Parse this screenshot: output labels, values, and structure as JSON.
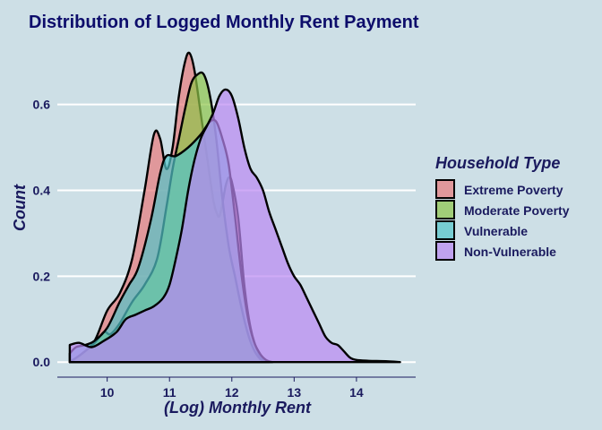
{
  "chart_data": {
    "type": "area",
    "title": "Distribution of Logged Monthly Rent Payment",
    "xlabel": "(Log) Monthly Rent",
    "ylabel": "Count",
    "xlim": [
      9.2,
      14.95
    ],
    "ylim": [
      -0.035,
      0.76
    ],
    "x_ticks": [
      10,
      11,
      12,
      13,
      14
    ],
    "y_ticks": [
      0.0,
      0.2,
      0.4,
      0.6
    ],
    "y_tick_labels": [
      "0.0",
      "0.2",
      "0.4",
      "0.6"
    ],
    "grid": "horizontal major lines",
    "legend_title": "Household Type",
    "legend_position": "right",
    "series": [
      {
        "name": "Extreme Poverty",
        "color": "#e8797a",
        "points": [
          [
            9.4,
            0.0
          ],
          [
            9.6,
            0.02
          ],
          [
            9.8,
            0.05
          ],
          [
            10.0,
            0.12
          ],
          [
            10.2,
            0.16
          ],
          [
            10.4,
            0.24
          ],
          [
            10.6,
            0.4
          ],
          [
            10.75,
            0.53
          ],
          [
            10.85,
            0.52
          ],
          [
            10.95,
            0.45
          ],
          [
            11.05,
            0.5
          ],
          [
            11.15,
            0.62
          ],
          [
            11.25,
            0.7
          ],
          [
            11.32,
            0.72
          ],
          [
            11.4,
            0.68
          ],
          [
            11.5,
            0.58
          ],
          [
            11.6,
            0.48
          ],
          [
            11.7,
            0.38
          ],
          [
            11.75,
            0.35
          ],
          [
            11.8,
            0.34
          ],
          [
            11.85,
            0.37
          ],
          [
            11.9,
            0.41
          ],
          [
            11.95,
            0.43
          ],
          [
            12.0,
            0.42
          ],
          [
            12.1,
            0.34
          ],
          [
            12.2,
            0.18
          ],
          [
            12.3,
            0.08
          ],
          [
            12.4,
            0.03
          ],
          [
            12.5,
            0.005
          ],
          [
            12.6,
            0.0
          ]
        ]
      },
      {
        "name": "Moderate Poverty",
        "color": "#8fc549",
        "points": [
          [
            9.4,
            0.0
          ],
          [
            9.6,
            0.02
          ],
          [
            9.8,
            0.045
          ],
          [
            9.95,
            0.07
          ],
          [
            10.05,
            0.065
          ],
          [
            10.2,
            0.09
          ],
          [
            10.4,
            0.14
          ],
          [
            10.6,
            0.18
          ],
          [
            10.8,
            0.24
          ],
          [
            10.95,
            0.36
          ],
          [
            11.05,
            0.45
          ],
          [
            11.15,
            0.52
          ],
          [
            11.25,
            0.59
          ],
          [
            11.35,
            0.65
          ],
          [
            11.45,
            0.67
          ],
          [
            11.55,
            0.67
          ],
          [
            11.65,
            0.62
          ],
          [
            11.75,
            0.52
          ],
          [
            11.85,
            0.38
          ],
          [
            11.95,
            0.27
          ],
          [
            12.05,
            0.2
          ],
          [
            12.15,
            0.13
          ],
          [
            12.25,
            0.07
          ],
          [
            12.35,
            0.03
          ],
          [
            12.45,
            0.008
          ],
          [
            12.55,
            0.0
          ]
        ]
      },
      {
        "name": "Vulnerable",
        "color": "#52c4c9",
        "points": [
          [
            9.4,
            0.02
          ],
          [
            9.5,
            0.035
          ],
          [
            9.65,
            0.04
          ],
          [
            9.8,
            0.05
          ],
          [
            10.0,
            0.08
          ],
          [
            10.2,
            0.14
          ],
          [
            10.35,
            0.18
          ],
          [
            10.5,
            0.22
          ],
          [
            10.7,
            0.33
          ],
          [
            10.85,
            0.44
          ],
          [
            10.95,
            0.48
          ],
          [
            11.1,
            0.48
          ],
          [
            11.3,
            0.5
          ],
          [
            11.5,
            0.53
          ],
          [
            11.65,
            0.56
          ],
          [
            11.75,
            0.56
          ],
          [
            11.85,
            0.52
          ],
          [
            11.95,
            0.46
          ],
          [
            12.05,
            0.34
          ],
          [
            12.15,
            0.21
          ],
          [
            12.25,
            0.11
          ],
          [
            12.35,
            0.05
          ],
          [
            12.45,
            0.02
          ],
          [
            12.55,
            0.005
          ],
          [
            12.65,
            0.0
          ]
        ]
      },
      {
        "name": "Non-Vulnerable",
        "color": "#bb88f2",
        "points": [
          [
            9.4,
            0.04
          ],
          [
            9.55,
            0.045
          ],
          [
            9.75,
            0.035
          ],
          [
            9.95,
            0.05
          ],
          [
            10.15,
            0.07
          ],
          [
            10.3,
            0.1
          ],
          [
            10.45,
            0.11
          ],
          [
            10.6,
            0.12
          ],
          [
            10.75,
            0.13
          ],
          [
            10.9,
            0.15
          ],
          [
            11.0,
            0.18
          ],
          [
            11.1,
            0.24
          ],
          [
            11.2,
            0.31
          ],
          [
            11.3,
            0.4
          ],
          [
            11.4,
            0.47
          ],
          [
            11.5,
            0.52
          ],
          [
            11.6,
            0.55
          ],
          [
            11.7,
            0.58
          ],
          [
            11.8,
            0.62
          ],
          [
            11.9,
            0.635
          ],
          [
            12.0,
            0.62
          ],
          [
            12.1,
            0.57
          ],
          [
            12.2,
            0.5
          ],
          [
            12.3,
            0.45
          ],
          [
            12.4,
            0.43
          ],
          [
            12.5,
            0.4
          ],
          [
            12.6,
            0.35
          ],
          [
            12.7,
            0.31
          ],
          [
            12.8,
            0.27
          ],
          [
            12.9,
            0.23
          ],
          [
            13.0,
            0.2
          ],
          [
            13.1,
            0.18
          ],
          [
            13.2,
            0.15
          ],
          [
            13.3,
            0.12
          ],
          [
            13.4,
            0.09
          ],
          [
            13.5,
            0.06
          ],
          [
            13.6,
            0.045
          ],
          [
            13.7,
            0.04
          ],
          [
            13.8,
            0.025
          ],
          [
            13.9,
            0.01
          ],
          [
            14.0,
            0.005
          ],
          [
            14.2,
            0.003
          ],
          [
            14.5,
            0.002
          ],
          [
            14.7,
            0.0
          ]
        ]
      }
    ]
  }
}
